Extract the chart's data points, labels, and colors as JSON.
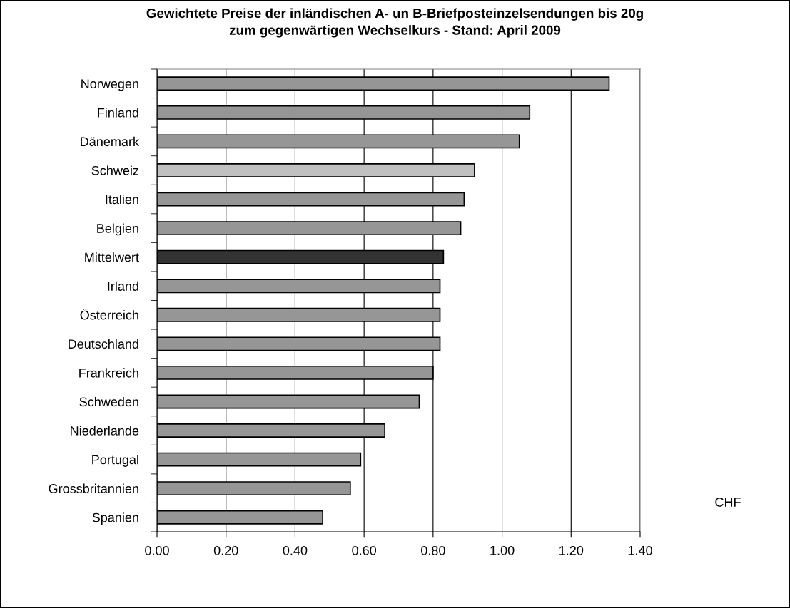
{
  "chart_data": {
    "type": "bar",
    "orientation": "horizontal",
    "title": "Gewichtete Preise der inländischen A- un B-Briefposteinzelsendungen bis 20g\nzum gegenwärtigen Wechselkurs - Stand: April 2009",
    "xlabel": "CHF",
    "categories": [
      "Norwegen",
      "Finland",
      "Dänemark",
      "Schweiz",
      "Italien",
      "Belgien",
      "Mittelwert",
      "Irland",
      "Österreich",
      "Deutschland",
      "Frankreich",
      "Schweden",
      "Niederlande",
      "Portugal",
      "Grossbritannien",
      "Spanien"
    ],
    "values": [
      1.31,
      1.08,
      1.05,
      0.92,
      0.89,
      0.88,
      0.83,
      0.82,
      0.82,
      0.82,
      0.8,
      0.76,
      0.66,
      0.59,
      0.56,
      0.48
    ],
    "colors": [
      "#969696",
      "#969696",
      "#969696",
      "#c0c0c0",
      "#969696",
      "#969696",
      "#333333",
      "#969696",
      "#969696",
      "#969696",
      "#969696",
      "#969696",
      "#969696",
      "#969696",
      "#969696",
      "#969696"
    ],
    "xlim": [
      0,
      1.4
    ],
    "xticks": [
      {
        "value": 0,
        "label": "0.00"
      },
      {
        "value": 0.2,
        "label": "0.20"
      },
      {
        "value": 0.4,
        "label": "0.40"
      },
      {
        "value": 0.6,
        "label": "0.60"
      },
      {
        "value": 0.8,
        "label": "0.80"
      },
      {
        "value": 1.0,
        "label": "1.00"
      },
      {
        "value": 1.2,
        "label": "1.20"
      },
      {
        "value": 1.4,
        "label": "1.40"
      }
    ],
    "grid": "x",
    "legend": false
  }
}
